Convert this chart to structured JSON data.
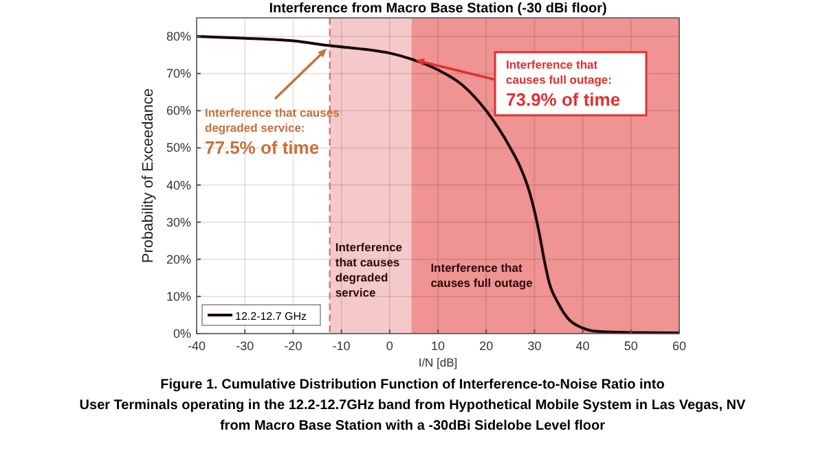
{
  "chart_data": {
    "type": "line",
    "title": "Interference from Macro Base Station (-30 dBi floor)",
    "xlabel": "I/N [dB]",
    "ylabel": "Probability of Exceedance",
    "x": [
      -40,
      -30,
      -20,
      -12.4,
      -5,
      0,
      4.5,
      10,
      15,
      20,
      25,
      27,
      29,
      30,
      31,
      32,
      33,
      35,
      37,
      40,
      43,
      50,
      60
    ],
    "series": [
      {
        "name": "12.2-12.7 GHz",
        "color": "#1a0505",
        "values": [
          80,
          79.5,
          78.8,
          77.5,
          76.5,
          75.5,
          73.9,
          71,
          67,
          60,
          50,
          45,
          38,
          33,
          27,
          20,
          14,
          8,
          4,
          1.5,
          0.6,
          0.3,
          0.2
        ]
      }
    ],
    "xlim": [
      -40,
      60
    ],
    "xticks": [
      -40,
      -30,
      -20,
      -10,
      0,
      10,
      20,
      30,
      40,
      50,
      60
    ],
    "ylim": [
      0,
      85
    ],
    "yticks": [
      {
        "value": 0,
        "label": "0%"
      },
      {
        "value": 10,
        "label": "10%"
      },
      {
        "value": 20,
        "label": "20%"
      },
      {
        "value": 30,
        "label": "30%"
      },
      {
        "value": 40,
        "label": "40%"
      },
      {
        "value": 50,
        "label": "50%"
      },
      {
        "value": 60,
        "label": "60%"
      },
      {
        "value": 70,
        "label": "70%"
      },
      {
        "value": 80,
        "label": "80%"
      }
    ],
    "bands": [
      {
        "axis": "x",
        "from": -12.4,
        "to": 4.5,
        "label": "Interference\nthat causes\ndegraded\nservice",
        "color": "#f5c9c9"
      },
      {
        "axis": "x",
        "from": 4.5,
        "to": 60,
        "label": "Interference that\ncauses full outage",
        "color": "#ef9393"
      }
    ],
    "ref_lines": [
      {
        "axis": "x",
        "value": -12.4,
        "color": "#e07070",
        "line_style": "dashed"
      }
    ],
    "annotations": [
      {
        "text": "Interference that causes\ndegraded service:\n77.5% of time",
        "x": -12.4,
        "y": 77.5
      },
      {
        "text": "Interference that\ncauses full outage:\n73.9% of time",
        "x": 4.5,
        "y": 73.9
      },
      "Figure 1.  Cumulative Distribution Function of Interference-to-Noise Ratio into\nUser Terminals operating in the 12.2-12.7GHz band from Hypothetical Mobile System in Las Vegas, NV\nfrom Macro Base Station with a -30dBi Sidelobe Level floor"
    ],
    "grid": true,
    "legend": "bottom left",
    "marker": "none",
    "line_style": "solid"
  }
}
